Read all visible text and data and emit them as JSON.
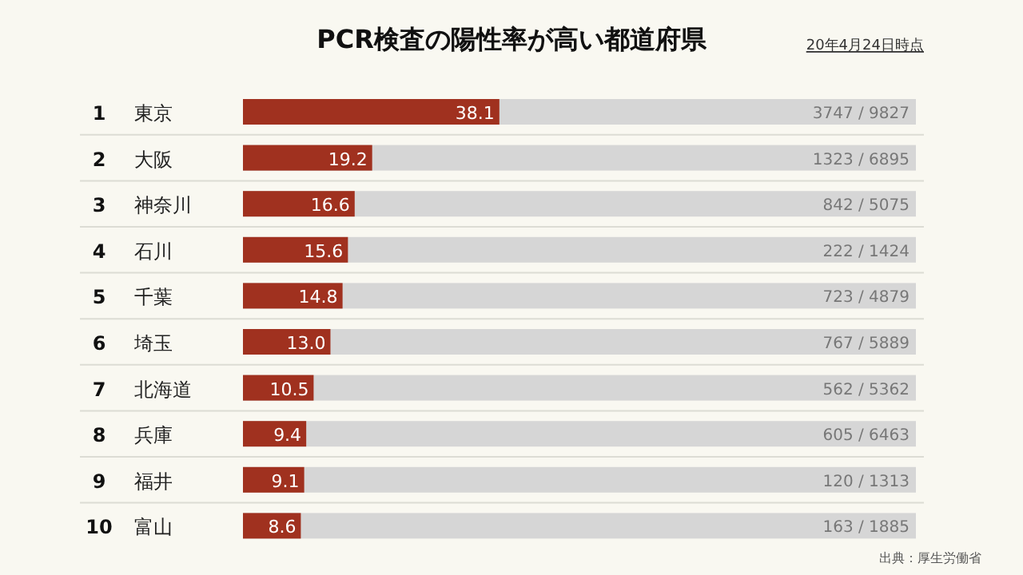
{
  "chart_data": {
    "type": "bar",
    "orientation": "horizontal",
    "title": "PCR検査の陽性率が高い都道府県",
    "subtitle": "20年4月24日時点",
    "categories": [
      "東京",
      "大阪",
      "神奈川",
      "石川",
      "千葉",
      "埼玉",
      "北海道",
      "兵庫",
      "福井",
      "富山"
    ],
    "values": [
      38.1,
      19.2,
      16.6,
      15.6,
      14.8,
      13.0,
      10.5,
      9.4,
      9.1,
      8.6
    ],
    "value_labels": [
      "38.1",
      "19.2",
      "16.6",
      "15.6",
      "14.8",
      "13.0",
      "10.5",
      "9.4",
      "9.1",
      "8.6"
    ],
    "color": "#a0311f",
    "xlim": [
      0,
      100
    ],
    "bands": [
      {
        "axis": "x",
        "from": 0,
        "to": 100,
        "color": "#d6d6d6"
      }
    ],
    "annotations": [
      "1",
      "2",
      "3",
      "4",
      "5",
      "6",
      "7",
      "8",
      "9",
      "10",
      "3747 / 9827",
      "1323 / 6895",
      "842 / 5075",
      "222 / 1424",
      "723 / 4879",
      "767 / 5889",
      "562 / 5362",
      "605 / 6463",
      "120 / 1313",
      "163 / 1885",
      "出典：厚生労働省"
    ]
  }
}
